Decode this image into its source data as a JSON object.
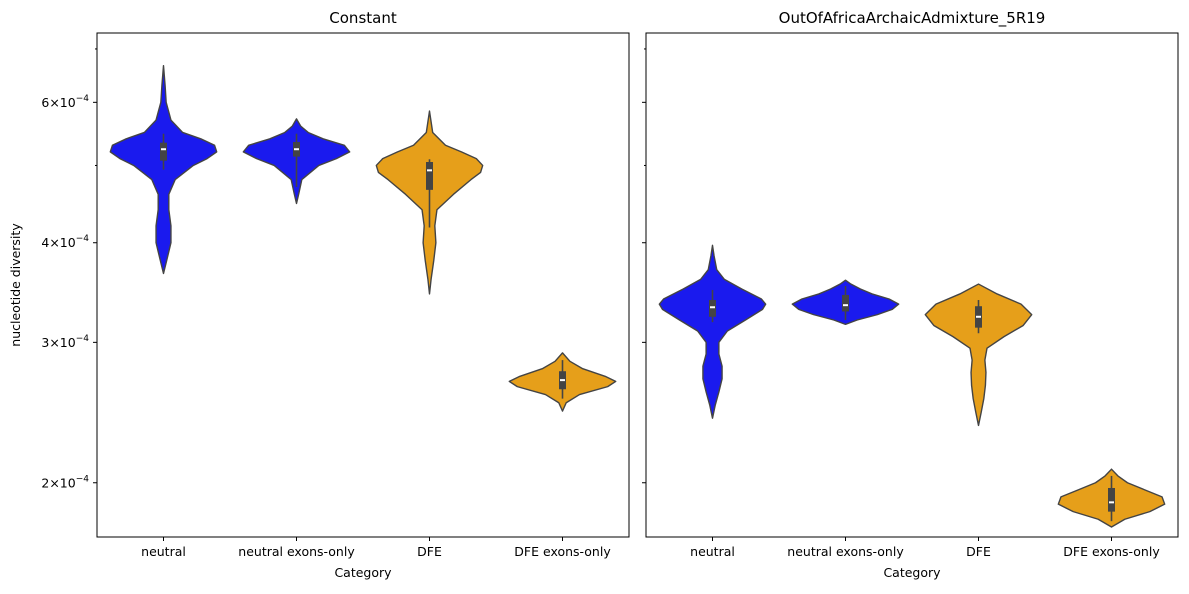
{
  "chart_data": [
    {
      "type": "violin",
      "title": "Constant",
      "xlabel": "Category",
      "ylabel": "nucleotide diversity",
      "yscale": "log",
      "categories": [
        "neutral",
        "neutral exons-only",
        "DFE",
        "DFE exons-only"
      ],
      "colors": [
        "#1a1aee",
        "#1a1aee",
        "#e69f1a",
        "#e69f1a"
      ],
      "yticks": [
        {
          "value": 0.0002,
          "mantissa": "2",
          "exponent": "−4"
        },
        {
          "value": 0.0003,
          "mantissa": "3",
          "exponent": "−4"
        },
        {
          "value": 0.0004,
          "mantissa": "4",
          "exponent": "−4"
        },
        {
          "value": 0.0006,
          "mantissa": "6",
          "exponent": "−4"
        }
      ],
      "violins": [
        {
          "category": "neutral",
          "min": 0.000366,
          "max": 0.000667,
          "q1": 0.000507,
          "median": 0.000524,
          "q3": 0.000534,
          "whisker_low": 0.000494,
          "whisker_high": 0.000548,
          "profile": [
            [
              0.000366,
              0.0
            ],
            [
              0.00038,
              0.06
            ],
            [
              0.0004,
              0.14
            ],
            [
              0.00042,
              0.14
            ],
            [
              0.00044,
              0.1
            ],
            [
              0.00046,
              0.1
            ],
            [
              0.00048,
              0.22
            ],
            [
              0.0005,
              0.56
            ],
            [
              0.00051,
              0.82
            ],
            [
              0.00052,
              1.0
            ],
            [
              0.00053,
              0.96
            ],
            [
              0.00054,
              0.7
            ],
            [
              0.00055,
              0.36
            ],
            [
              0.00057,
              0.14
            ],
            [
              0.0006,
              0.05
            ],
            [
              0.00063,
              0.03
            ],
            [
              0.000667,
              0.0
            ]
          ]
        },
        {
          "category": "neutral exons-only",
          "min": 0.000448,
          "max": 0.000572,
          "q1": 0.000513,
          "median": 0.000524,
          "q3": 0.000535,
          "whisker_low": 0.00047,
          "whisker_high": 0.000548,
          "profile": [
            [
              0.000448,
              0.0
            ],
            [
              0.00046,
              0.04
            ],
            [
              0.00048,
              0.1
            ],
            [
              0.0005,
              0.42
            ],
            [
              0.00051,
              0.75
            ],
            [
              0.00052,
              1.0
            ],
            [
              0.00053,
              0.9
            ],
            [
              0.00054,
              0.5
            ],
            [
              0.00055,
              0.22
            ],
            [
              0.00056,
              0.08
            ],
            [
              0.000572,
              0.0
            ]
          ]
        },
        {
          "category": "DFE",
          "min": 0.000345,
          "max": 0.000585,
          "q1": 0.000466,
          "median": 0.000493,
          "q3": 0.000505,
          "whisker_low": 0.000418,
          "whisker_high": 0.000509,
          "profile": [
            [
              0.000345,
              0.0
            ],
            [
              0.00036,
              0.03
            ],
            [
              0.00038,
              0.08
            ],
            [
              0.0004,
              0.12
            ],
            [
              0.00042,
              0.1
            ],
            [
              0.00044,
              0.14
            ],
            [
              0.00046,
              0.45
            ],
            [
              0.00048,
              0.78
            ],
            [
              0.00049,
              0.96
            ],
            [
              0.0005,
              1.0
            ],
            [
              0.00051,
              0.88
            ],
            [
              0.00052,
              0.6
            ],
            [
              0.00053,
              0.3
            ],
            [
              0.00055,
              0.06
            ],
            [
              0.000585,
              0.0
            ]
          ]
        },
        {
          "category": "DFE exons-only",
          "min": 0.000246,
          "max": 0.000291,
          "q1": 0.000262,
          "median": 0.000269,
          "q3": 0.000276,
          "whisker_low": 0.000255,
          "whisker_high": 0.000285,
          "profile": [
            [
              0.000246,
              0.0
            ],
            [
              0.000252,
              0.07
            ],
            [
              0.000258,
              0.32
            ],
            [
              0.000264,
              0.85
            ],
            [
              0.000268,
              1.0
            ],
            [
              0.000272,
              0.8
            ],
            [
              0.000278,
              0.38
            ],
            [
              0.000284,
              0.14
            ],
            [
              0.000291,
              0.0
            ]
          ]
        }
      ]
    },
    {
      "type": "violin",
      "title": "OutOfAfricaArchaicAdmixture_5R19",
      "xlabel": "Category",
      "ylabel": "",
      "yscale": "log",
      "categories": [
        "neutral",
        "neutral exons-only",
        "DFE",
        "DFE exons-only"
      ],
      "colors": [
        "#1a1aee",
        "#1a1aee",
        "#e69f1a",
        "#e69f1a"
      ],
      "yticks": [
        {
          "value": 0.0002,
          "mantissa": "",
          "exponent": ""
        },
        {
          "value": 0.0003,
          "mantissa": "",
          "exponent": ""
        },
        {
          "value": 0.0004,
          "mantissa": "",
          "exponent": ""
        },
        {
          "value": 0.0006,
          "mantissa": "",
          "exponent": ""
        }
      ],
      "violins": [
        {
          "category": "neutral",
          "min": 0.000241,
          "max": 0.000397,
          "q1": 0.000323,
          "median": 0.000332,
          "q3": 0.000339,
          "whisker_low": 0.000318,
          "whisker_high": 0.000349,
          "profile": [
            [
              0.000241,
              0.0
            ],
            [
              0.00025,
              0.05
            ],
            [
              0.00026,
              0.12
            ],
            [
              0.00027,
              0.18
            ],
            [
              0.00028,
              0.18
            ],
            [
              0.00029,
              0.12
            ],
            [
              0.0003,
              0.12
            ],
            [
              0.00031,
              0.28
            ],
            [
              0.00032,
              0.62
            ],
            [
              0.00033,
              0.94
            ],
            [
              0.000335,
              1.0
            ],
            [
              0.00034,
              0.92
            ],
            [
              0.00035,
              0.55
            ],
            [
              0.00036,
              0.22
            ],
            [
              0.00037,
              0.08
            ],
            [
              0.000385,
              0.03
            ],
            [
              0.000397,
              0.0
            ]
          ]
        },
        {
          "category": "neutral exons-only",
          "min": 0.000316,
          "max": 0.000359,
          "q1": 0.000328,
          "median": 0.000334,
          "q3": 0.000344,
          "whisker_low": 0.00032,
          "whisker_high": 0.000353,
          "profile": [
            [
              0.000316,
              0.0
            ],
            [
              0.00032,
              0.22
            ],
            [
              0.000325,
              0.6
            ],
            [
              0.00033,
              0.88
            ],
            [
              0.000335,
              1.0
            ],
            [
              0.00034,
              0.82
            ],
            [
              0.000345,
              0.5
            ],
            [
              0.00035,
              0.28
            ],
            [
              0.000355,
              0.1
            ],
            [
              0.000359,
              0.0
            ]
          ]
        },
        {
          "category": "DFE",
          "min": 0.000236,
          "max": 0.000355,
          "q1": 0.000313,
          "median": 0.000323,
          "q3": 0.000333,
          "whisker_low": 0.000308,
          "whisker_high": 0.000339,
          "profile": [
            [
              0.000236,
              0.0
            ],
            [
              0.000245,
              0.05
            ],
            [
              0.000255,
              0.1
            ],
            [
              0.000265,
              0.13
            ],
            [
              0.000275,
              0.14
            ],
            [
              0.000285,
              0.12
            ],
            [
              0.000295,
              0.16
            ],
            [
              0.000305,
              0.48
            ],
            [
              0.000315,
              0.84
            ],
            [
              0.000325,
              1.0
            ],
            [
              0.000335,
              0.8
            ],
            [
              0.000345,
              0.35
            ],
            [
              0.000355,
              0.0
            ]
          ]
        },
        {
          "category": "DFE exons-only",
          "min": 0.000176,
          "max": 0.000208,
          "q1": 0.000184,
          "median": 0.000189,
          "q3": 0.000197,
          "whisker_low": 0.000179,
          "whisker_high": 0.000204,
          "profile": [
            [
              0.000176,
              0.0
            ],
            [
              0.00018,
              0.25
            ],
            [
              0.000184,
              0.72
            ],
            [
              0.000188,
              1.0
            ],
            [
              0.000192,
              0.95
            ],
            [
              0.000196,
              0.62
            ],
            [
              0.0002,
              0.3
            ],
            [
              0.000204,
              0.12
            ],
            [
              0.000208,
              0.0
            ]
          ]
        }
      ]
    }
  ]
}
